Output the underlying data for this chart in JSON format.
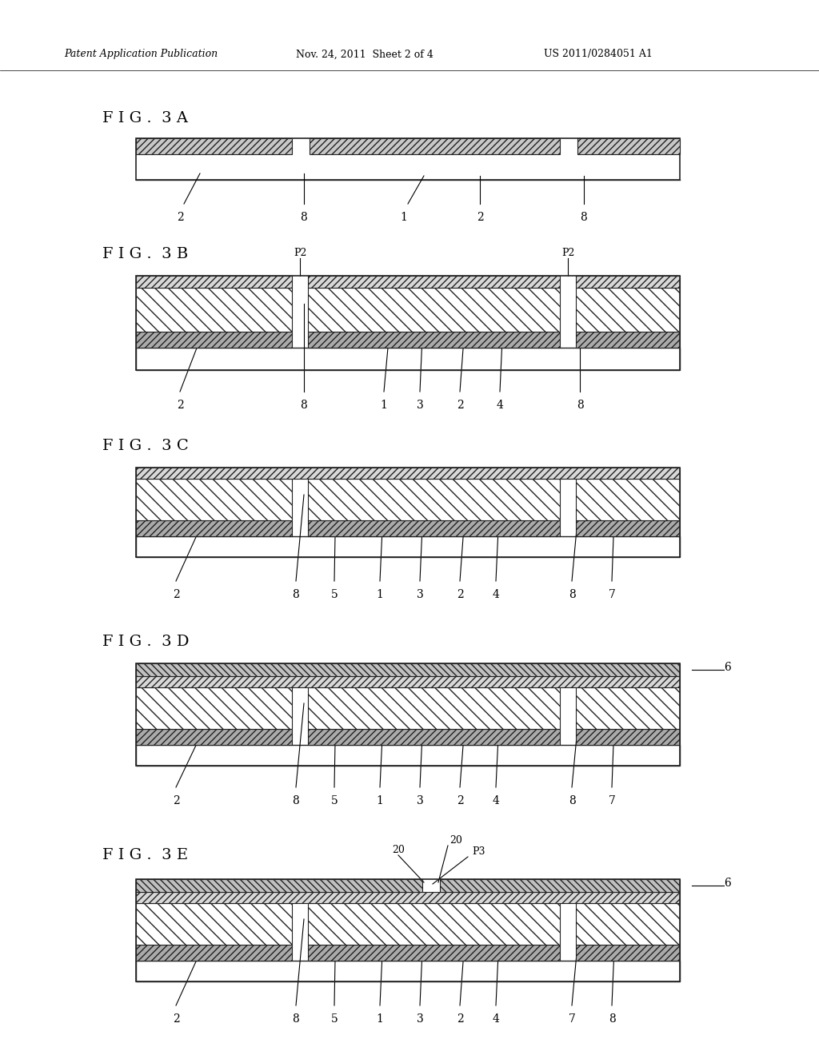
{
  "bg_color": "#ffffff",
  "header_left": "Patent Application Publication",
  "header_mid": "Nov. 24, 2011  Sheet 2 of 4",
  "header_right": "US 2011/0284051 A1",
  "fig_labels": [
    "F I G .  3 A",
    "F I G .  3 B",
    "F I G .  3 C",
    "F I G .  3 D",
    "F I G .  3 E"
  ],
  "gray_color": "#aaaaaa",
  "dark_gray": "#888888",
  "hatch_color": "#666666",
  "line_color": "#222222"
}
